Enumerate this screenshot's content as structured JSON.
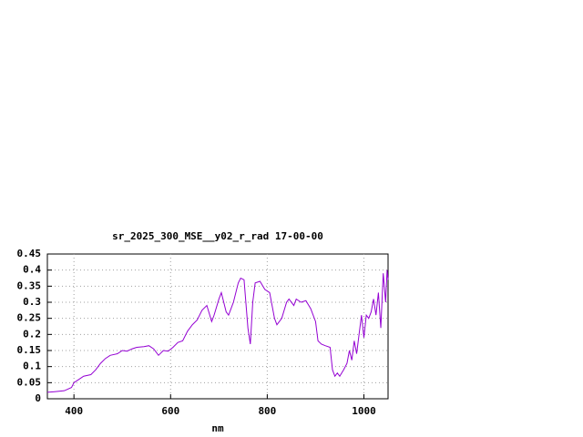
{
  "chart_data": {
    "type": "line",
    "title": "sr_2025_300_MSE__y02_r_rad 17-00-00",
    "x_label": "nm",
    "x": [
      345,
      360,
      380,
      395,
      400,
      410,
      420,
      435,
      445,
      455,
      465,
      475,
      490,
      500,
      510,
      520,
      530,
      545,
      555,
      565,
      575,
      585,
      595,
      605,
      615,
      625,
      635,
      645,
      655,
      665,
      675,
      685,
      690,
      700,
      705,
      715,
      720,
      730,
      740,
      745,
      752,
      760,
      765,
      770,
      775,
      785,
      795,
      805,
      815,
      820,
      830,
      840,
      845,
      855,
      860,
      870,
      880,
      890,
      900,
      905,
      912,
      920,
      930,
      935,
      940,
      945,
      950,
      958,
      965,
      970,
      975,
      980,
      985,
      990,
      995,
      1000,
      1005,
      1010,
      1015,
      1020,
      1025,
      1030,
      1035,
      1040,
      1045,
      1048,
      1050
    ],
    "series": [
      {
        "color": "#9400d3",
        "values": [
          0.02,
          0.022,
          0.025,
          0.035,
          0.05,
          0.06,
          0.07,
          0.075,
          0.09,
          0.11,
          0.125,
          0.135,
          0.14,
          0.15,
          0.148,
          0.155,
          0.16,
          0.162,
          0.165,
          0.155,
          0.135,
          0.15,
          0.148,
          0.16,
          0.175,
          0.18,
          0.21,
          0.23,
          0.245,
          0.275,
          0.29,
          0.24,
          0.26,
          0.31,
          0.33,
          0.27,
          0.26,
          0.3,
          0.36,
          0.375,
          0.37,
          0.22,
          0.17,
          0.3,
          0.36,
          0.365,
          0.34,
          0.33,
          0.25,
          0.23,
          0.25,
          0.3,
          0.31,
          0.29,
          0.31,
          0.3,
          0.305,
          0.28,
          0.24,
          0.18,
          0.17,
          0.165,
          0.16,
          0.09,
          0.07,
          0.08,
          0.07,
          0.09,
          0.11,
          0.15,
          0.12,
          0.18,
          0.14,
          0.2,
          0.26,
          0.19,
          0.26,
          0.25,
          0.27,
          0.31,
          0.26,
          0.33,
          0.22,
          0.39,
          0.3,
          0.4,
          0.37
        ]
      }
    ],
    "xlim": [
      345,
      1050
    ],
    "xticks": [
      400,
      600,
      800,
      1000
    ],
    "ylim": [
      0,
      0.45
    ],
    "yticks": [
      0,
      0.05,
      0.1,
      0.15,
      0.2,
      0.25,
      0.3,
      0.35,
      0.4,
      0.45
    ],
    "grid": true
  }
}
